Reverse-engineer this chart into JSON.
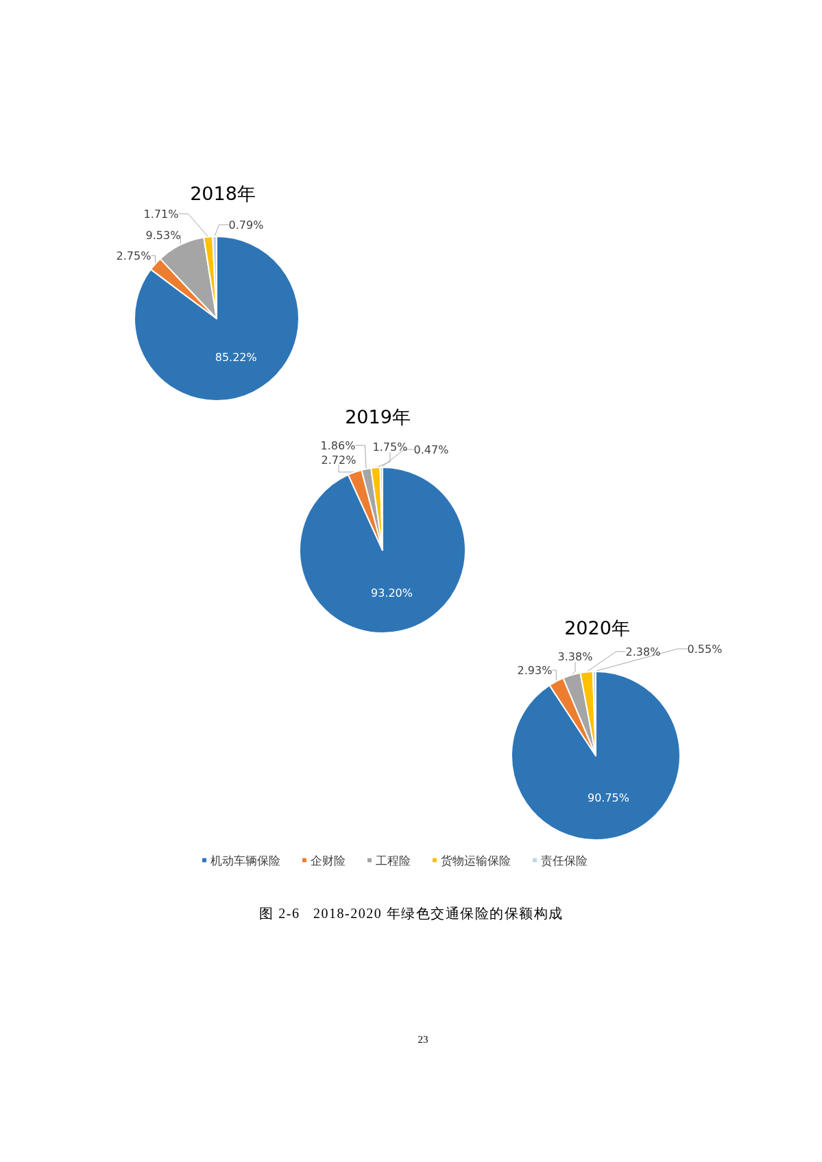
{
  "chart_data": [
    {
      "type": "pie",
      "title": "2018年",
      "categories": [
        null,
        null,
        null,
        null,
        null
      ],
      "values": [
        85.22,
        2.75,
        9.53,
        1.71,
        0.79
      ],
      "colors": [
        "#2e75b6",
        "#ed7d31",
        "#a5a5a5",
        "#ffc000",
        "#bdd7ee"
      ],
      "value_labels": [
        "85.22%",
        "2.75%",
        "9.53%",
        "1.71%",
        "0.79%"
      ]
    },
    {
      "type": "pie",
      "title": "2019年",
      "categories": [
        null,
        null,
        null,
        null,
        null
      ],
      "values": [
        93.2,
        2.72,
        1.86,
        1.75,
        0.47
      ],
      "colors": [
        "#2e75b6",
        "#ed7d31",
        "#a5a5a5",
        "#ffc000",
        "#bdd7ee"
      ],
      "value_labels": [
        "93.20%",
        "2.72%",
        "1.86%",
        "1.75%",
        "0.47%"
      ]
    },
    {
      "type": "pie",
      "title": "2020年",
      "categories": [
        "机动车辆保险",
        "企财险",
        "工程险",
        "货物运输保险",
        "责任保险"
      ],
      "values": [
        90.75,
        2.93,
        3.38,
        2.38,
        0.55
      ],
      "colors": [
        "#2e75b6",
        "#ed7d31",
        "#a5a5a5",
        "#ffc000",
        "#bdd7ee"
      ],
      "value_labels": [
        "90.75%",
        "2.93%",
        "3.38%",
        "2.38%",
        "0.55%"
      ],
      "legend": "bottom",
      "annotations": [
        "图 2-6   2018-2020 年绿色交通保险的保额构成",
        "23"
      ]
    }
  ]
}
